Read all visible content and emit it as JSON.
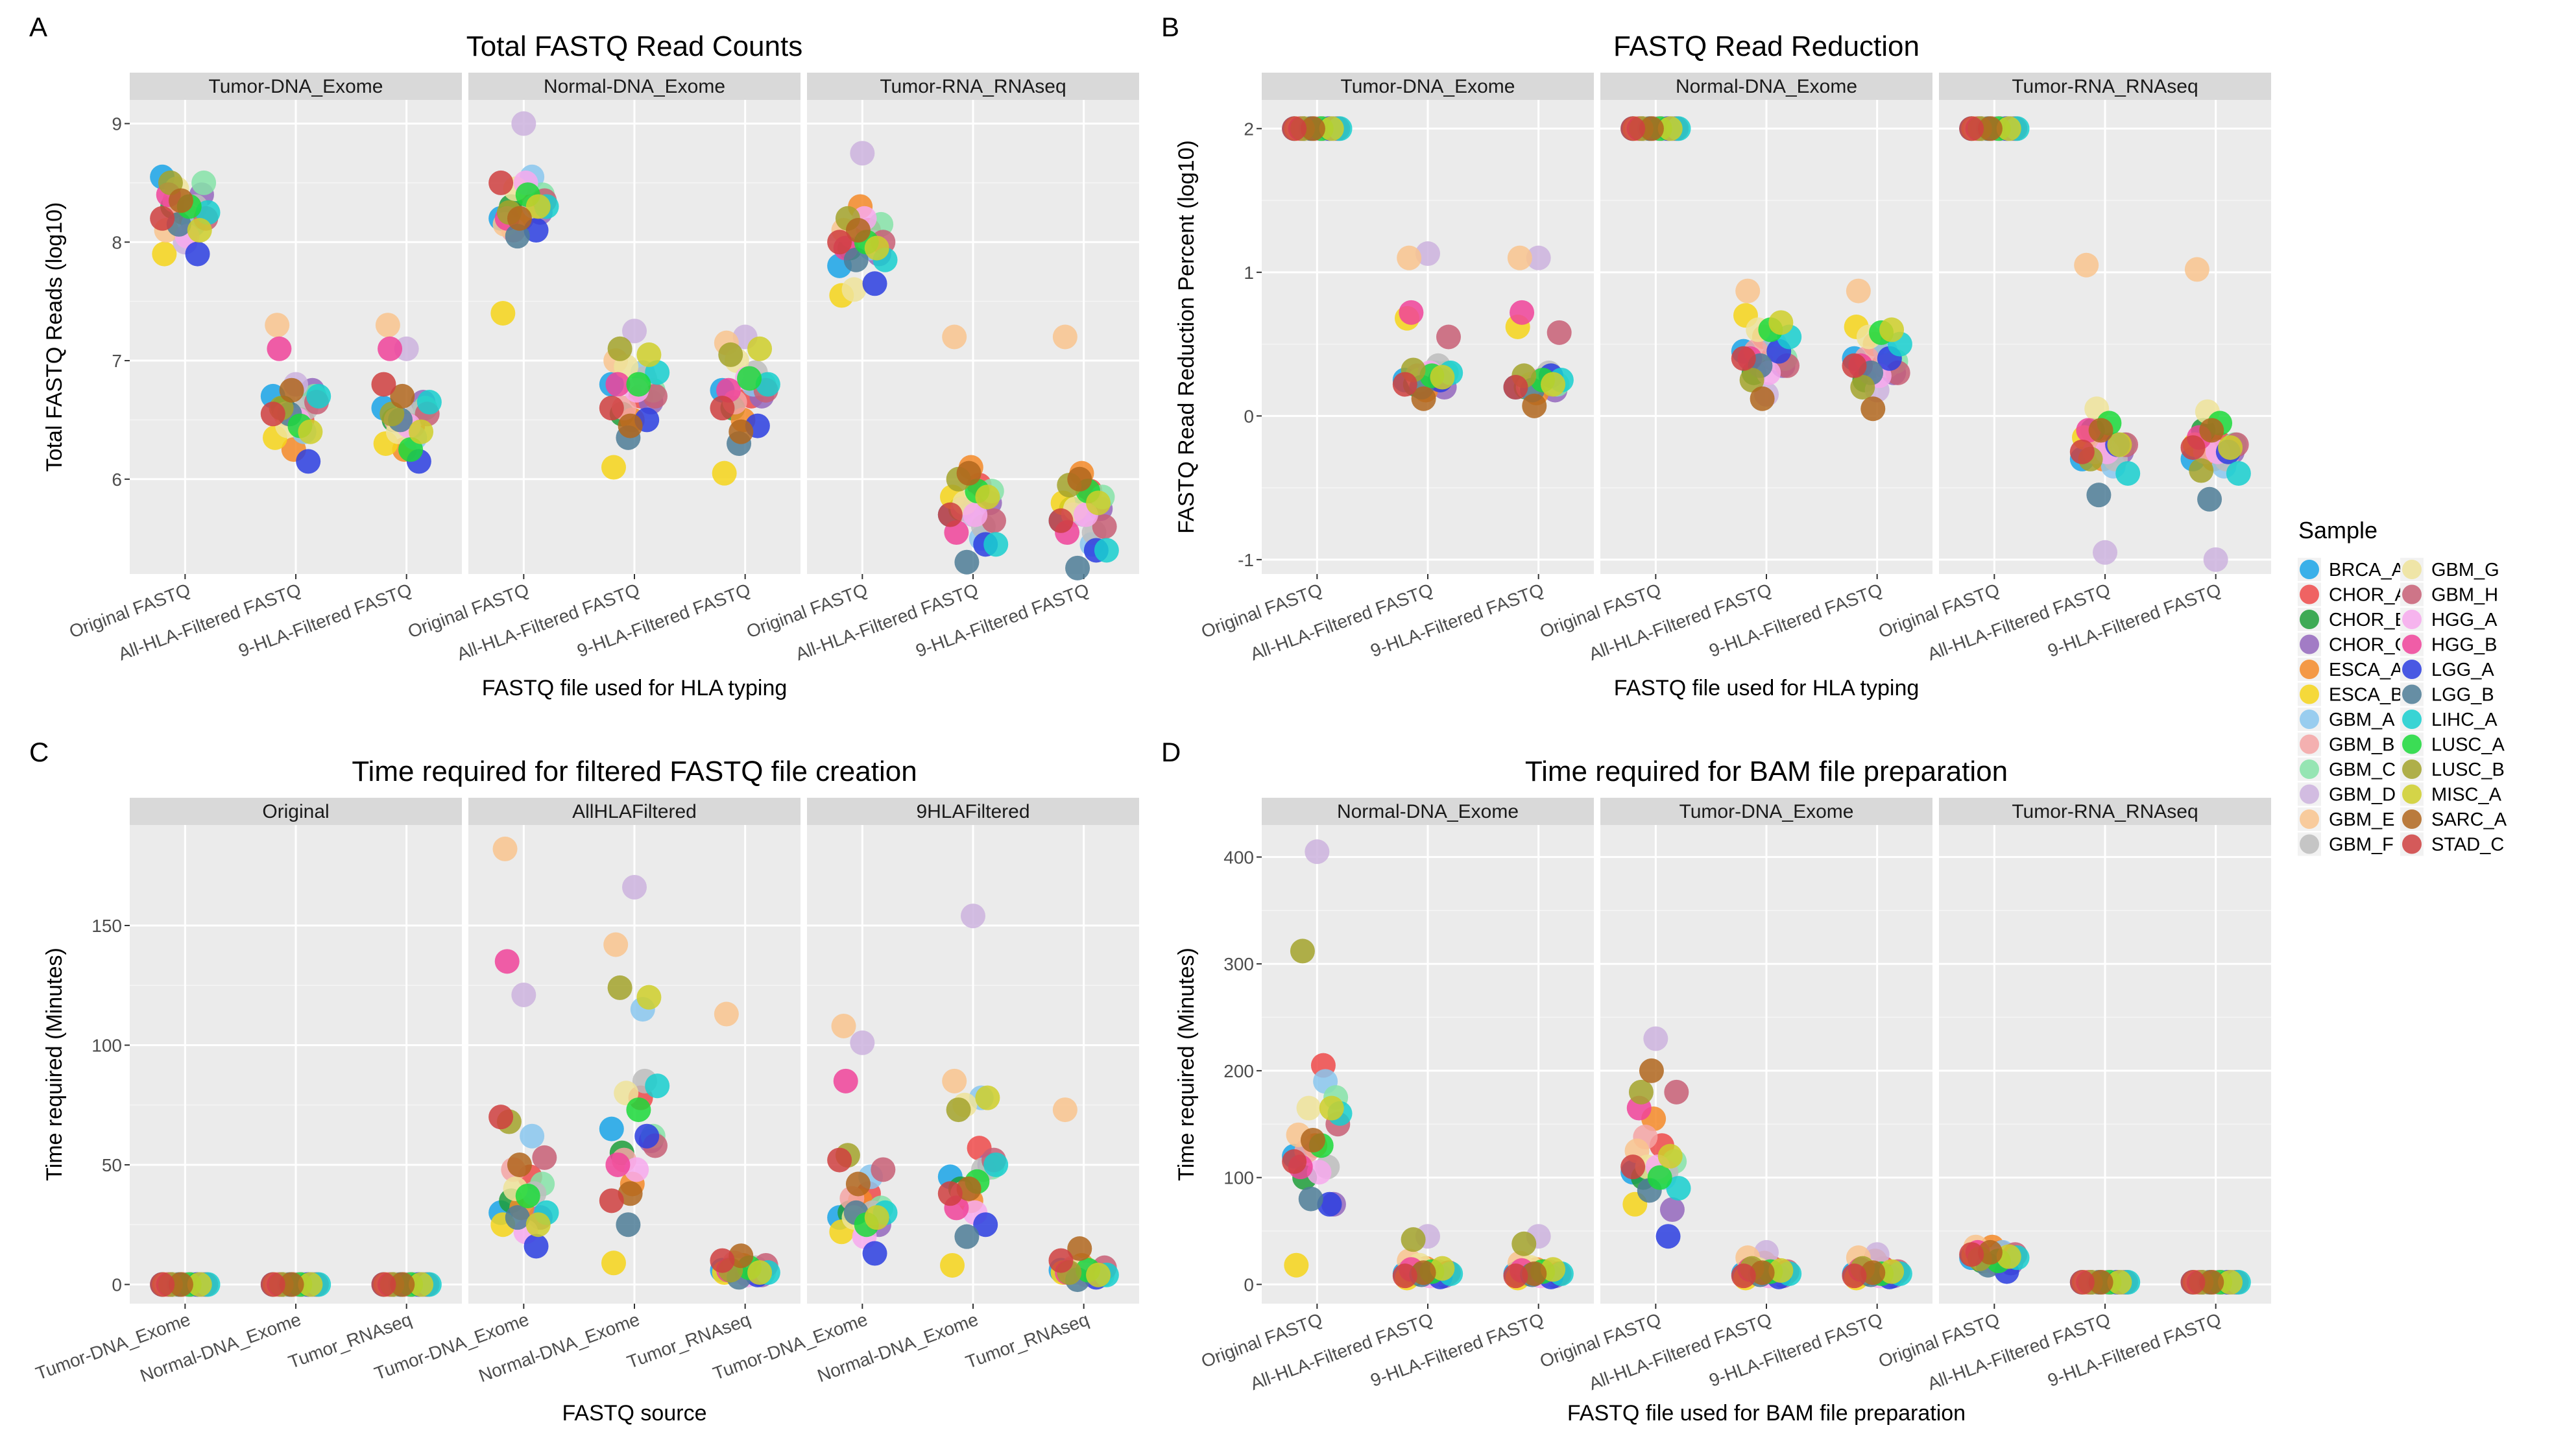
{
  "samples": [
    "BRCA_A",
    "CHOR_A",
    "CHOR_B",
    "CHOR_C",
    "ESCA_A",
    "ESCA_B",
    "GBM_A",
    "GBM_B",
    "GBM_C",
    "GBM_D",
    "GBM_E",
    "GBM_F",
    "GBM_G",
    "GBM_H",
    "HGG_A",
    "HGG_B",
    "LGG_A",
    "LGG_B",
    "LIHC_A",
    "LUSC_A",
    "LUSC_B",
    "MISC_A",
    "SARC_A",
    "STAD_C"
  ],
  "colors": {
    "BRCA_A": "#1aa4e8",
    "CHOR_A": "#ef4a4a",
    "CHOR_B": "#1f9e3a",
    "CHOR_C": "#9467bd",
    "ESCA_A": "#f58a28",
    "ESCA_B": "#f6d51a",
    "GBM_A": "#89c7ef",
    "GBM_B": "#f4a5a5",
    "GBM_C": "#86e3a8",
    "GBM_D": "#cdb3de",
    "GBM_E": "#f9c48e",
    "GBM_F": "#bdbdbd",
    "GBM_G": "#efe39a",
    "GBM_H": "#c85f76",
    "HGG_A": "#f7a9ed",
    "HGG_B": "#f0439a",
    "LGG_A": "#2b3ee0",
    "LGG_B": "#4d7d96",
    "LIHC_A": "#17cfcf",
    "LUSC_A": "#1bd93a",
    "LUSC_B": "#a3a32b",
    "MISC_A": "#cfcf2a",
    "SARC_A": "#b0661d",
    "STAD_C": "#cf4040"
  },
  "legend": {
    "title": "Sample"
  },
  "chart_data": [
    {
      "letter": "A",
      "type": "scatter",
      "title": "Total FASTQ Read Counts",
      "xlabel": "FASTQ file used for HLA typing",
      "ylabel": "Total FASTQ Reads (log10)",
      "ylim": [
        5.2,
        9.2
      ],
      "yticks": [
        6,
        7,
        8,
        9
      ],
      "facets": [
        "Tumor-DNA_Exome",
        "Normal-DNA_Exome",
        "Tumor-RNA_RNAseq"
      ],
      "categories": [
        "Original FASTQ",
        "All-HLA-Filtered FASTQ",
        "9-HLA-Filtered FASTQ"
      ],
      "points": [
        [
          [
            8.55,
            8.2,
            8.3,
            8.4,
            8.25,
            7.9,
            8.15,
            8.35,
            8.5,
            8.0,
            8.1,
            8.3,
            8.45,
            8.2,
            8.05,
            8.4,
            7.9,
            8.15,
            8.25,
            8.3,
            8.5,
            8.1,
            8.35,
            8.2
          ],
          [
            6.7,
            6.5,
            6.6,
            6.75,
            6.25,
            6.35,
            6.4,
            6.55,
            6.7,
            6.8,
            7.3,
            6.6,
            6.45,
            6.65,
            6.5,
            7.1,
            6.15,
            6.55,
            6.7,
            6.45,
            6.6,
            6.4,
            6.75,
            6.55
          ],
          [
            6.6,
            6.45,
            6.5,
            6.65,
            6.25,
            6.3,
            6.35,
            6.5,
            6.6,
            7.1,
            7.3,
            6.55,
            6.4,
            6.55,
            6.45,
            7.1,
            6.15,
            6.5,
            6.65,
            6.25,
            6.55,
            6.4,
            6.7,
            6.8
          ]
        ],
        [
          [
            8.2,
            8.35,
            8.3,
            8.25,
            8.2,
            7.4,
            8.55,
            8.1,
            8.4,
            9.0,
            8.15,
            8.3,
            8.45,
            8.35,
            8.5,
            8.2,
            8.1,
            8.05,
            8.3,
            8.4,
            8.25,
            8.3,
            8.2,
            8.5
          ],
          [
            6.8,
            6.7,
            6.55,
            6.65,
            6.5,
            6.1,
            6.9,
            6.6,
            6.75,
            7.25,
            7.0,
            6.85,
            6.95,
            6.7,
            6.75,
            6.8,
            6.5,
            6.35,
            6.9,
            6.8,
            7.1,
            7.05,
            6.45,
            6.6
          ],
          [
            6.75,
            6.7,
            6.6,
            6.7,
            6.5,
            6.05,
            6.8,
            6.65,
            6.8,
            7.2,
            7.15,
            6.9,
            7.0,
            6.75,
            6.85,
            6.75,
            6.45,
            6.3,
            6.8,
            6.85,
            7.05,
            7.1,
            6.4,
            6.6
          ]
        ],
        [
          [
            7.8,
            8.1,
            7.95,
            7.9,
            8.3,
            7.55,
            7.95,
            8.05,
            8.15,
            8.75,
            8.1,
            8.0,
            7.6,
            8.0,
            8.2,
            7.95,
            7.65,
            7.85,
            7.85,
            8.0,
            8.2,
            7.95,
            8.1,
            8.0
          ],
          [
            5.7,
            5.95,
            5.75,
            5.8,
            6.1,
            5.85,
            5.5,
            5.75,
            5.9,
            5.7,
            7.2,
            5.6,
            5.8,
            5.65,
            5.7,
            5.55,
            5.45,
            5.3,
            5.45,
            5.9,
            6.0,
            5.85,
            6.05,
            5.7
          ],
          [
            5.65,
            5.9,
            5.75,
            5.75,
            6.05,
            5.8,
            5.45,
            5.7,
            5.85,
            5.7,
            7.2,
            5.55,
            5.75,
            5.6,
            5.7,
            5.55,
            5.4,
            5.25,
            5.4,
            5.9,
            5.95,
            5.8,
            6.0,
            5.65
          ]
        ]
      ]
    },
    {
      "letter": "B",
      "type": "scatter",
      "title": "FASTQ Read Reduction",
      "xlabel": "FASTQ file used for HLA typing",
      "ylabel": "FASTQ Read Reduction Percent (log10)",
      "ylim": [
        -1.1,
        2.2
      ],
      "yticks": [
        -1,
        0,
        1,
        2
      ],
      "facets": [
        "Tumor-DNA_Exome",
        "Normal-DNA_Exome",
        "Tumor-RNA_RNAseq"
      ],
      "categories": [
        "Original FASTQ",
        "All-HLA-Filtered FASTQ",
        "9-HLA-Filtered FASTQ"
      ],
      "points": [
        [
          [
            2,
            2,
            2,
            2,
            2,
            2,
            2,
            2,
            2,
            2,
            2,
            2,
            2,
            2,
            2,
            2,
            2,
            2,
            2,
            2,
            2,
            2,
            2,
            2
          ],
          [
            0.25,
            0.3,
            0.22,
            0.2,
            0.18,
            0.68,
            0.3,
            0.28,
            0.3,
            1.13,
            1.1,
            0.35,
            0.25,
            0.55,
            0.3,
            0.72,
            0.25,
            0.2,
            0.3,
            0.28,
            0.32,
            0.27,
            0.12,
            0.22
          ],
          [
            0.2,
            0.25,
            0.2,
            0.18,
            0.16,
            0.62,
            0.25,
            0.2,
            0.22,
            1.1,
            1.1,
            0.3,
            0.22,
            0.58,
            0.25,
            0.72,
            0.28,
            0.18,
            0.25,
            0.25,
            0.28,
            0.22,
            0.07,
            0.2
          ]
        ],
        [
          [
            2,
            2,
            2,
            2,
            2,
            2,
            2,
            2,
            2,
            2,
            2,
            2,
            2,
            2,
            2,
            2,
            2,
            2,
            2,
            2,
            2,
            2,
            2,
            2
          ],
          [
            0.45,
            0.4,
            0.3,
            0.35,
            0.55,
            0.7,
            0.5,
            0.45,
            0.4,
            0.15,
            0.87,
            0.4,
            0.6,
            0.35,
            0.3,
            0.4,
            0.45,
            0.35,
            0.55,
            0.6,
            0.25,
            0.65,
            0.12,
            0.4
          ],
          [
            0.4,
            0.35,
            0.25,
            0.3,
            0.5,
            0.62,
            0.45,
            0.4,
            0.38,
            0.18,
            0.87,
            0.35,
            0.55,
            0.3,
            0.28,
            0.35,
            0.4,
            0.3,
            0.5,
            0.58,
            0.2,
            0.6,
            0.05,
            0.35
          ]
        ],
        [
          [
            2,
            2,
            2,
            2,
            2,
            2,
            2,
            2,
            2,
            2,
            2,
            2,
            2,
            2,
            2,
            2,
            2,
            2,
            2,
            2,
            2,
            2,
            2,
            2
          ],
          [
            -0.3,
            -0.2,
            -0.1,
            -0.25,
            -0.3,
            -0.15,
            -0.35,
            -0.25,
            -0.2,
            -0.95,
            1.05,
            -0.3,
            0.05,
            -0.2,
            -0.25,
            -0.1,
            -0.2,
            -0.55,
            -0.4,
            -0.05,
            -0.3,
            -0.2,
            -0.1,
            -0.25
          ],
          [
            -0.3,
            -0.2,
            -0.1,
            -0.25,
            -0.3,
            -0.2,
            -0.35,
            -0.25,
            -0.2,
            -1.0,
            1.02,
            -0.3,
            0.03,
            -0.2,
            -0.25,
            -0.15,
            -0.25,
            -0.58,
            -0.4,
            -0.05,
            -0.38,
            -0.22,
            -0.1,
            -0.22
          ]
        ]
      ]
    },
    {
      "letter": "C",
      "type": "scatter",
      "title": "Time required for filtered FASTQ file creation",
      "xlabel": "FASTQ source",
      "ylabel": "Time required (Minutes)",
      "ylim": [
        -8,
        192
      ],
      "yticks": [
        0,
        50,
        100,
        150
      ],
      "facets": [
        "Original",
        "AllHLAFiltered",
        "9HLAFiltered"
      ],
      "categories": [
        "Tumor-DNA_Exome",
        "Normal-DNA_Exome",
        "Tumor_RNAseq"
      ],
      "points": [
        [
          [
            0,
            0,
            0,
            0,
            0,
            0,
            0,
            0,
            0,
            0,
            0,
            0,
            0,
            0,
            0,
            0,
            0,
            0,
            0,
            0,
            0,
            0,
            0,
            0
          ],
          [
            0,
            0,
            0,
            0,
            0,
            0,
            0,
            0,
            0,
            0,
            0,
            0,
            0,
            0,
            0,
            0,
            0,
            0,
            0,
            0,
            0,
            0,
            0,
            0
          ],
          [
            0,
            0,
            0,
            0,
            0,
            0,
            0,
            0,
            0,
            0,
            0,
            0,
            0,
            0,
            0,
            0,
            0,
            0,
            0,
            0,
            0,
            0,
            0,
            0
          ]
        ],
        [
          [
            30,
            45,
            35,
            28,
            32,
            25,
            62,
            48,
            42,
            121,
            182,
            38,
            40,
            53,
            22,
            135,
            16,
            28,
            30,
            37,
            68,
            25,
            50,
            70
          ],
          [
            65,
            78,
            55,
            60,
            42,
            9,
            115,
            52,
            62,
            166,
            142,
            85,
            80,
            58,
            48,
            50,
            62,
            25,
            83,
            73,
            124,
            120,
            38,
            35
          ],
          [
            6,
            5,
            7,
            4,
            8,
            5,
            6,
            9,
            5,
            5,
            113,
            7,
            6,
            8,
            4,
            6,
            4,
            3,
            5,
            7,
            6,
            5,
            12,
            10
          ]
        ],
        [
          [
            28,
            38,
            30,
            25,
            35,
            22,
            45,
            36,
            32,
            101,
            108,
            30,
            28,
            48,
            20,
            85,
            13,
            30,
            30,
            25,
            54,
            28,
            42,
            52
          ],
          [
            45,
            57,
            40,
            50,
            35,
            8,
            78,
            38,
            49,
            154,
            85,
            48,
            75,
            52,
            30,
            32,
            25,
            20,
            50,
            43,
            73,
            78,
            40,
            38
          ],
          [
            6,
            5,
            6,
            4,
            8,
            5,
            5,
            7,
            4,
            6,
            73,
            5,
            5,
            7,
            4,
            5,
            3,
            2,
            4,
            6,
            5,
            4,
            15,
            10
          ]
        ]
      ]
    },
    {
      "letter": "D",
      "type": "scatter",
      "title": "Time required for BAM file preparation",
      "xlabel": "FASTQ file used for BAM file preparation",
      "ylabel": "Time required (Minutes)",
      "ylim": [
        -18,
        430
      ],
      "yticks": [
        0,
        100,
        200,
        300,
        400
      ],
      "facets": [
        "Normal-DNA_Exome",
        "Tumor-DNA_Exome",
        "Tumor-RNA_RNAseq"
      ],
      "categories": [
        "Original FASTQ",
        "All-HLA-Filtered FASTQ",
        "9-HLA-Filtered FASTQ"
      ],
      "points": [
        [
          [
            120,
            205,
            100,
            75,
            130,
            18,
            190,
            125,
            175,
            405,
            140,
            110,
            165,
            150,
            105,
            110,
            75,
            80,
            160,
            130,
            312,
            165,
            135,
            115
          ],
          [
            10,
            12,
            10,
            8,
            15,
            6,
            9,
            14,
            10,
            45,
            22,
            12,
            18,
            11,
            8,
            14,
            7,
            9,
            10,
            12,
            42,
            15,
            11,
            8
          ],
          [
            10,
            12,
            10,
            8,
            14,
            6,
            9,
            12,
            10,
            45,
            20,
            12,
            16,
            10,
            8,
            13,
            7,
            9,
            10,
            12,
            38,
            14,
            10,
            8
          ]
        ],
        [
          [
            105,
            130,
            100,
            70,
            155,
            75,
            100,
            138,
            115,
            230,
            125,
            105,
            110,
            180,
            110,
            165,
            45,
            88,
            90,
            100,
            180,
            120,
            200,
            110
          ],
          [
            10,
            15,
            12,
            8,
            20,
            6,
            10,
            14,
            10,
            30,
            25,
            12,
            14,
            12,
            8,
            14,
            7,
            9,
            10,
            12,
            15,
            13,
            11,
            8
          ],
          [
            10,
            15,
            10,
            8,
            22,
            6,
            9,
            14,
            10,
            28,
            25,
            10,
            12,
            12,
            8,
            14,
            7,
            9,
            10,
            10,
            15,
            12,
            11,
            8
          ]
        ],
        [
          [
            25,
            30,
            22,
            20,
            35,
            28,
            30,
            22,
            26,
            24,
            35,
            25,
            22,
            28,
            20,
            30,
            12,
            18,
            25,
            22,
            24,
            26,
            30,
            28
          ],
          [
            2,
            2,
            2,
            2,
            2,
            2,
            2,
            2,
            2,
            2,
            2,
            2,
            2,
            2,
            2,
            2,
            2,
            2,
            2,
            2,
            2,
            2,
            2,
            2
          ],
          [
            2,
            2,
            2,
            2,
            2,
            2,
            2,
            2,
            2,
            2,
            2,
            2,
            2,
            2,
            2,
            2,
            2,
            2,
            2,
            2,
            2,
            2,
            2,
            2
          ]
        ]
      ]
    }
  ]
}
